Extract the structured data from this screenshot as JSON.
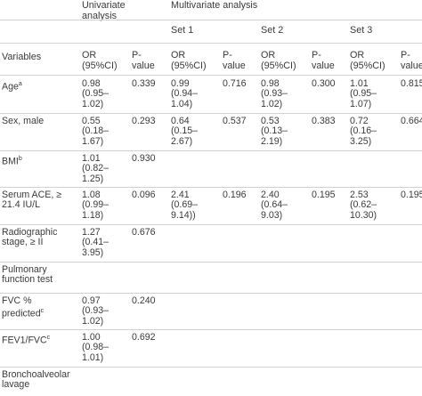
{
  "headers": {
    "univariate_group": "Univariate\nanalysis",
    "multivariate_group": "Multivariate analysis",
    "sets": [
      "Set 1",
      "Set 2",
      "Set 3"
    ],
    "variables": "Variables",
    "or_ci": "OR\n(95%CI)",
    "p_value": "P-\nvalue"
  },
  "rows": [
    {
      "variable": "Age",
      "variable_sup": "a",
      "cells": [
        "0.98\n(0.95–\n1.02)",
        "0.339",
        "0.99\n(0.94–\n1.04)",
        "0.716",
        "0.98\n(0.93–\n1.02)",
        "0.300",
        "1.01\n(0.95–\n1.07)",
        "0.815"
      ]
    },
    {
      "variable": "Sex, male",
      "variable_sup": "",
      "cells": [
        "0.55\n(0.18–\n1.67)",
        "0.293",
        "0.64\n(0.15–\n2.67)",
        "0.537",
        "0.53\n(0.13–\n2.19)",
        "0.383",
        "0.72\n(0.16–\n3.25)",
        "0.664"
      ]
    },
    {
      "variable": "BMI",
      "variable_sup": "b",
      "cells": [
        "1.01\n(0.82–\n1.25)",
        "0.930",
        "",
        "",
        "",
        "",
        "",
        ""
      ]
    },
    {
      "variable": "Serum ACE, ≥\n21.4 IU/L",
      "variable_sup": "",
      "cells": [
        "1.08\n(0.99–\n1.18)",
        "0.096",
        "2.41\n(0.69–\n9.14))",
        "0.196",
        "2.40\n(0.64–\n9.03)",
        "0.195",
        "2.53\n(0.62–\n10.30)",
        "0.195"
      ]
    },
    {
      "variable": "Radiographic\nstage, ≥ II",
      "variable_sup": "",
      "cells": [
        "1.27\n(0.41–\n3.95)",
        "0.676",
        "",
        "",
        "",
        "",
        "",
        ""
      ]
    },
    {
      "variable": "Pulmonary\nfunction test",
      "variable_sup": "",
      "cells": [
        "",
        "",
        "",
        "",
        "",
        "",
        "",
        ""
      ]
    },
    {
      "variable": "FVC %\npredicted",
      "variable_sup": "c",
      "cells": [
        "0.97\n(0.93–\n1.02)",
        "0.240",
        "",
        "",
        "",
        "",
        "",
        ""
      ]
    },
    {
      "variable": "FEV1/FVC",
      "variable_sup": "c",
      "cells": [
        "1.00\n(0.98–\n1.01)",
        "0.692",
        "",
        "",
        "",
        "",
        "",
        ""
      ]
    },
    {
      "variable": "Bronchoalveolar\nlavage",
      "variable_sup": "",
      "cells": [
        "",
        "",
        "",
        "",
        "",
        "",
        "",
        ""
      ]
    }
  ]
}
